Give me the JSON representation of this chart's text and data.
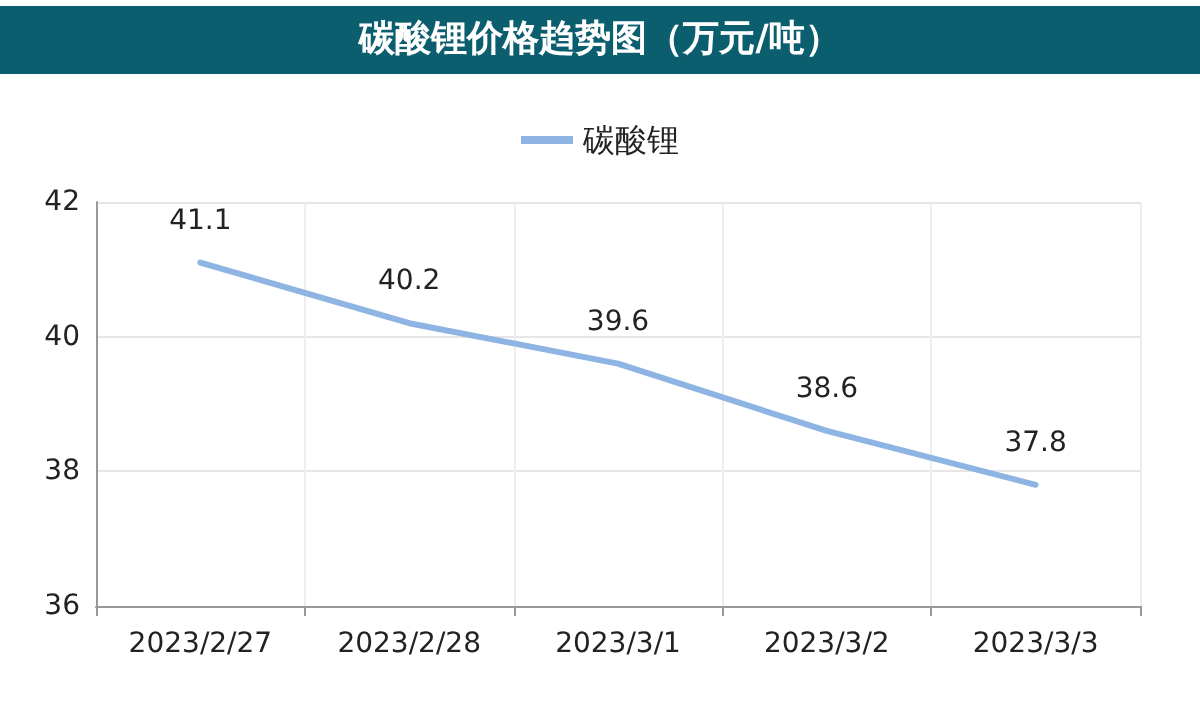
{
  "chart_data": {
    "type": "line",
    "title": "碳酸锂价格趋势图（万元/吨）",
    "categories": [
      "2023/2/27",
      "2023/2/28",
      "2023/3/1",
      "2023/3/2",
      "2023/3/3"
    ],
    "series": [
      {
        "name": "碳酸锂",
        "color": "#8db4e2",
        "values": [
          41.1,
          40.2,
          39.6,
          38.6,
          37.8
        ]
      }
    ],
    "ylim": [
      36,
      42
    ],
    "yticks": [
      36,
      38,
      40,
      42
    ],
    "grid": true,
    "legend": "top",
    "marker": "none",
    "line_style": "solid",
    "data_labels": true
  }
}
